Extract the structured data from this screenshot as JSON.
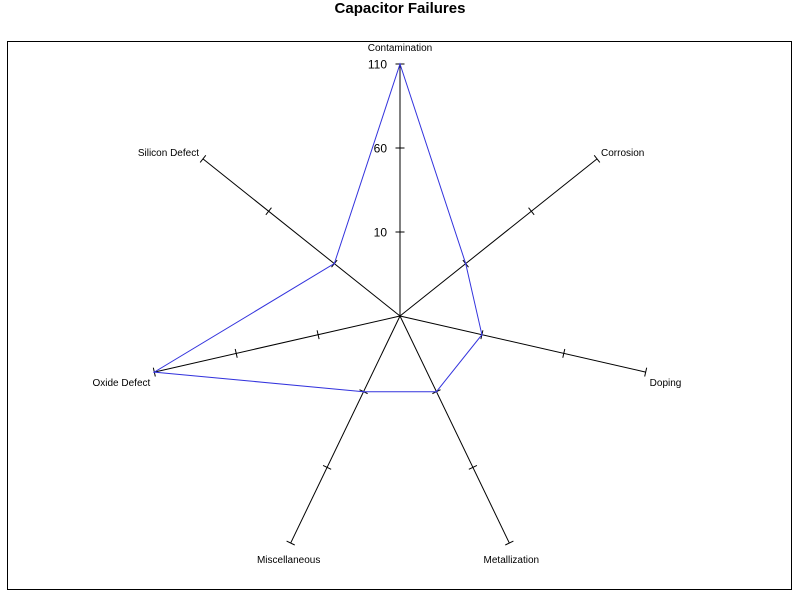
{
  "chart_data": {
    "type": "radar",
    "title": "Capacitor Failures",
    "spokes": [
      "Contamination",
      "Corrosion",
      "Doping",
      "Metallization",
      "Miscellaneous",
      "Oxide Defect",
      "Silicon Defect"
    ],
    "tick_labels": [
      "10",
      "60",
      "110"
    ],
    "tick_values": [
      10,
      60,
      110
    ],
    "axis_min": -40,
    "axis_max": 110,
    "series": [
      {
        "values": [
          110,
          10,
          10,
          10,
          10,
          110,
          10
        ]
      }
    ],
    "colors": {
      "series": "#3333dd",
      "axes": "#000000"
    }
  }
}
